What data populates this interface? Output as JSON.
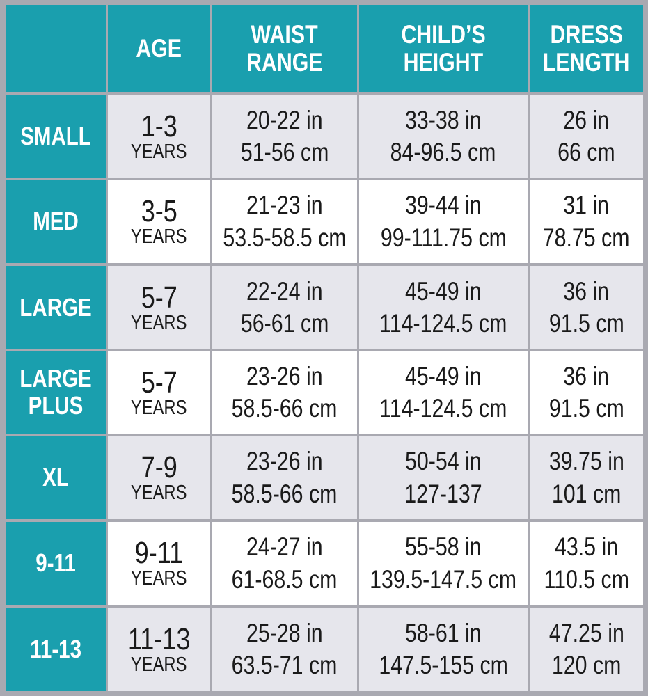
{
  "header": {
    "columns": [
      [
        "AGE"
      ],
      [
        "WAIST",
        "RANGE"
      ],
      [
        "CHILD’S",
        "HEIGHT"
      ],
      [
        "DRESS",
        "LENGTH"
      ]
    ]
  },
  "rows": [
    {
      "size": [
        "SMALL"
      ],
      "age": [
        "1-3",
        "YEARS"
      ],
      "waist": [
        "20-22 in",
        "51-56 cm"
      ],
      "height": [
        "33-38 in",
        "84-96.5 cm"
      ],
      "length": [
        "26 in",
        "66 cm"
      ]
    },
    {
      "size": [
        "MED"
      ],
      "age": [
        "3-5",
        "YEARS"
      ],
      "waist": [
        "21-23 in",
        "53.5-58.5 cm"
      ],
      "height": [
        "39-44 in",
        "99-111.75 cm"
      ],
      "length": [
        "31 in",
        "78.75 cm"
      ]
    },
    {
      "size": [
        "LARGE"
      ],
      "age": [
        "5-7",
        "YEARS"
      ],
      "waist": [
        "22-24 in",
        "56-61 cm"
      ],
      "height": [
        "45-49 in",
        "114-124.5 cm"
      ],
      "length": [
        "36 in",
        "91.5 cm"
      ]
    },
    {
      "size": [
        "LARGE",
        "PLUS"
      ],
      "age": [
        "5-7",
        "YEARS"
      ],
      "waist": [
        "23-26 in",
        "58.5-66 cm"
      ],
      "height": [
        "45-49 in",
        "114-124.5 cm"
      ],
      "length": [
        "36 in",
        "91.5 cm"
      ]
    },
    {
      "size": [
        "XL"
      ],
      "age": [
        "7-9",
        "YEARS"
      ],
      "waist": [
        "23-26 in",
        "58.5-66 cm"
      ],
      "height": [
        "50-54 in",
        "127-137"
      ],
      "length": [
        "39.75 in",
        "101 cm"
      ]
    },
    {
      "size": [
        "9-11"
      ],
      "age": [
        "9-11",
        "YEARS"
      ],
      "waist": [
        "24-27 in",
        "61-68.5 cm"
      ],
      "height": [
        "55-58 in",
        "139.5-147.5 cm"
      ],
      "length": [
        "43.5 in",
        "110.5 cm"
      ]
    },
    {
      "size": [
        "11-13"
      ],
      "age": [
        "11-13",
        "YEARS"
      ],
      "waist": [
        "25-28 in",
        "63.5-71 cm"
      ],
      "height": [
        "58-61 in",
        "147.5-155 cm"
      ],
      "length": [
        "47.25 in",
        "120 cm"
      ]
    }
  ]
}
